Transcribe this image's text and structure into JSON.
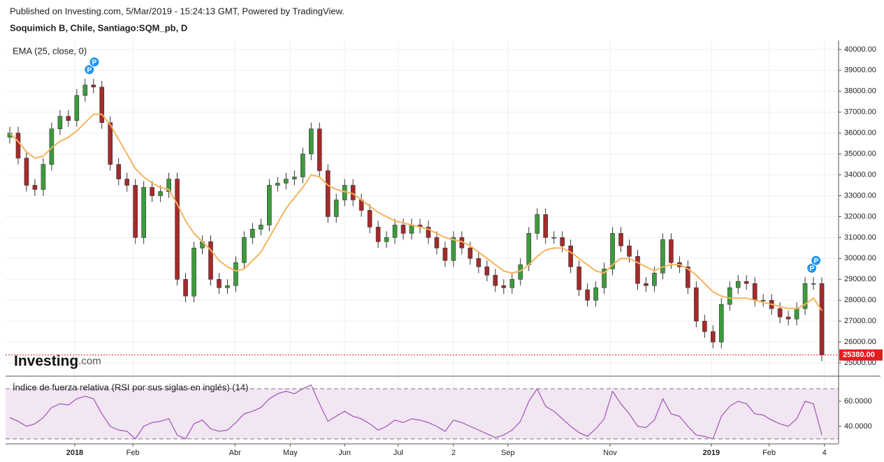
{
  "header": {
    "published": "Published on Investing.com, 5/Mar/2019 - 15:24:13 GMT, Powered by TradingView.",
    "instrument": "Soquimich B, Chile, Santiago:SQM_pb, D"
  },
  "logo": {
    "brand": "Investing",
    "suffix": ".com"
  },
  "chart_data": [
    {
      "type": "candlestick",
      "up_color": "#3d9b3d",
      "down_color": "#a52a2a",
      "open": [
        35800,
        36000,
        34800,
        33500,
        33300,
        34500,
        36200,
        36800,
        36600,
        37800,
        38300,
        38200,
        36500,
        34500,
        33800,
        33500,
        31000,
        33400,
        33000,
        33200,
        33800,
        29000,
        28200,
        30500,
        30800,
        29000,
        28600,
        28700,
        29800,
        31000,
        31400,
        31600,
        33500,
        33600,
        33800,
        33900,
        35000,
        36200,
        34200,
        32000,
        32800,
        33500,
        32800,
        32300,
        31500,
        30800,
        31000,
        31600,
        31200,
        31600,
        31500,
        31000,
        30500,
        29900,
        31000,
        30500,
        30000,
        29600,
        29200,
        28700,
        28600,
        29000,
        29700,
        31200,
        32100,
        31000,
        31000,
        30600,
        29600,
        28500,
        28000,
        28600,
        29500,
        31200,
        30600,
        30100,
        28800,
        28700,
        29300,
        30900,
        29800,
        29600,
        28600,
        27000,
        26500,
        26000,
        27800,
        28600,
        28900,
        28800,
        28000,
        28000,
        27600,
        27200,
        27100,
        27600,
        28800,
        28800
      ],
      "high": [
        36300,
        36300,
        35100,
        33800,
        34800,
        36500,
        37100,
        37100,
        38100,
        38600,
        38600,
        38500,
        36800,
        34800,
        34100,
        33800,
        33700,
        33700,
        33500,
        34100,
        34100,
        29300,
        30800,
        31100,
        31100,
        29300,
        29000,
        30100,
        31300,
        31700,
        31900,
        33800,
        33900,
        34100,
        34200,
        35300,
        36500,
        36500,
        34500,
        33100,
        33800,
        33800,
        33100,
        32600,
        31800,
        31300,
        31900,
        31900,
        31900,
        31900,
        31800,
        31300,
        30800,
        31300,
        31300,
        30800,
        30300,
        29900,
        29500,
        29000,
        29300,
        30000,
        31500,
        32400,
        32400,
        31300,
        31300,
        30900,
        29900,
        28800,
        28900,
        29800,
        31500,
        31500,
        30900,
        30400,
        29100,
        29600,
        31200,
        31200,
        30100,
        29900,
        28900,
        27300,
        26800,
        28100,
        28900,
        29200,
        29200,
        29100,
        28300,
        28300,
        27900,
        27500,
        27900,
        29100,
        29100,
        29100
      ],
      "low": [
        35500,
        34500,
        33200,
        33000,
        33000,
        34200,
        35900,
        36300,
        36300,
        37500,
        37900,
        36200,
        34200,
        33500,
        33200,
        30700,
        30700,
        32700,
        32700,
        32900,
        28700,
        27900,
        27900,
        30200,
        28700,
        28300,
        28300,
        28400,
        29500,
        30700,
        31100,
        31300,
        33200,
        33300,
        33500,
        33600,
        34700,
        33900,
        31700,
        31700,
        32500,
        32500,
        32000,
        31200,
        30500,
        30500,
        30700,
        30900,
        30900,
        31200,
        30700,
        30200,
        29600,
        29600,
        30200,
        29700,
        29300,
        28900,
        28400,
        28300,
        28300,
        28700,
        29400,
        30900,
        30700,
        30700,
        30300,
        29300,
        28200,
        27700,
        27700,
        28300,
        29200,
        30300,
        29800,
        28500,
        28400,
        28400,
        29000,
        29500,
        29300,
        28300,
        26700,
        26200,
        25700,
        25700,
        27500,
        28300,
        28500,
        27700,
        27700,
        27300,
        26900,
        26800,
        26800,
        27300,
        28500,
        25080
      ],
      "close": [
        36000,
        34800,
        33500,
        33300,
        34500,
        36200,
        36800,
        36600,
        37800,
        38300,
        38200,
        36500,
        34500,
        33800,
        33500,
        31000,
        33400,
        33000,
        33200,
        33800,
        29000,
        28200,
        30500,
        30800,
        29000,
        28600,
        28700,
        29800,
        31000,
        31400,
        31600,
        33500,
        33600,
        33800,
        33900,
        35000,
        36200,
        34200,
        32000,
        32800,
        33500,
        32800,
        32300,
        31500,
        30800,
        31000,
        31600,
        31200,
        31600,
        31500,
        31000,
        30500,
        29900,
        31000,
        30500,
        30000,
        29600,
        29200,
        28700,
        28600,
        29000,
        29700,
        31200,
        32100,
        31000,
        31000,
        30600,
        29600,
        28500,
        28000,
        28600,
        29500,
        31200,
        30600,
        30100,
        28800,
        28700,
        29300,
        30900,
        29800,
        29600,
        28600,
        27000,
        26500,
        26000,
        27800,
        28600,
        28900,
        28800,
        28000,
        28000,
        27600,
        27200,
        27100,
        27600,
        28800,
        28800,
        25380
      ],
      "series": [
        {
          "name": "EMA (25, close, 0)",
          "color": "#f4b45c",
          "values": [
            36000,
            35600,
            35100,
            34800,
            34900,
            35300,
            35600,
            35800,
            36100,
            36500,
            36900,
            36900,
            36400,
            35700,
            35000,
            34300,
            33900,
            33600,
            33400,
            33300,
            32600,
            31800,
            31200,
            30800,
            30400,
            29900,
            29600,
            29400,
            29500,
            29900,
            30300,
            31000,
            31700,
            32400,
            32900,
            33400,
            34000,
            33900,
            33500,
            33300,
            33200,
            33100,
            32800,
            32500,
            32200,
            32000,
            31800,
            31700,
            31600,
            31500,
            31400,
            31200,
            31000,
            30900,
            30800,
            30600,
            30300,
            30000,
            29700,
            29400,
            29300,
            29400,
            29700,
            30100,
            30400,
            30500,
            30500,
            30300,
            30000,
            29700,
            29400,
            29300,
            29700,
            30000,
            30000,
            29800,
            29600,
            29400,
            29600,
            29700,
            29700,
            29500,
            29200,
            28800,
            28400,
            28200,
            28100,
            28100,
            28100,
            28000,
            27900,
            27800,
            27700,
            27600,
            27600,
            27800,
            28100,
            27500
          ]
        }
      ],
      "xlim": [
        -0.5,
        99
      ],
      "xticks": [
        {
          "value": 7.76,
          "label": "2018"
        },
        {
          "value": 14.7,
          "label": "Feb"
        },
        {
          "value": 26.9,
          "label": "Abr"
        },
        {
          "value": 33.5,
          "label": "May"
        },
        {
          "value": 40.0,
          "label": "Jun"
        },
        {
          "value": 46.4,
          "label": "Jul"
        },
        {
          "value": 53.0,
          "label": "2"
        },
        {
          "value": 59.5,
          "label": "Sep"
        },
        {
          "value": 71.7,
          "label": "Nov"
        },
        {
          "value": 83.8,
          "label": "2019"
        },
        {
          "value": 90.7,
          "label": "Feb"
        },
        {
          "value": 97.3,
          "label": "4"
        }
      ],
      "ylim": [
        24400,
        40430
      ],
      "yticks": [
        {
          "value": 25000,
          "label": "25000.00"
        },
        {
          "value": 26000,
          "label": "26000.00"
        },
        {
          "value": 27000,
          "label": "27000.00"
        },
        {
          "value": 28000,
          "label": "28000.00"
        },
        {
          "value": 29000,
          "label": "29000.00"
        },
        {
          "value": 30000,
          "label": "30000.00"
        },
        {
          "value": 31000,
          "label": "31000.00"
        },
        {
          "value": 32000,
          "label": "32000.00"
        },
        {
          "value": 33000,
          "label": "33000.00"
        },
        {
          "value": 34000,
          "label": "34000.00"
        },
        {
          "value": 35000,
          "label": "35000.00"
        },
        {
          "value": 36000,
          "label": "36000.00"
        },
        {
          "value": 37000,
          "label": "37000.00"
        },
        {
          "value": 38000,
          "label": "38000.00"
        },
        {
          "value": 39000,
          "label": "39000.00"
        },
        {
          "value": 40000,
          "label": "40000.00"
        }
      ],
      "grid": true,
      "last_price": {
        "value": 25380,
        "label": "25380.00",
        "color": "#e41e1e"
      },
      "markers": [
        {
          "x": 9.5,
          "label": "P"
        },
        {
          "x": 10.1,
          "label": "P"
        },
        {
          "x": 95.8,
          "label": "P"
        },
        {
          "x": 96.3,
          "label": "P"
        }
      ],
      "marker_color": "#2196f3"
    },
    {
      "type": "line",
      "series": [
        {
          "name": "Índice de fuerza relativa (RSI por sus siglas en inglés) (14)",
          "color": "#9c55b6",
          "values": [
            47,
            44,
            40,
            42,
            47,
            55,
            58,
            57,
            62,
            64,
            62,
            50,
            40,
            37,
            36,
            30,
            40,
            43,
            44,
            46,
            33,
            30,
            42,
            45,
            38,
            36,
            37,
            43,
            50,
            52,
            55,
            62,
            66,
            68,
            66,
            70,
            73,
            58,
            44,
            48,
            52,
            48,
            46,
            42,
            37,
            40,
            45,
            43,
            46,
            45,
            43,
            40,
            36,
            45,
            43,
            40,
            37,
            34,
            31,
            33,
            37,
            44,
            60,
            70,
            56,
            52,
            46,
            40,
            35,
            32,
            38,
            46,
            68,
            58,
            50,
            40,
            39,
            45,
            62,
            50,
            48,
            40,
            33,
            32,
            30,
            48,
            56,
            60,
            58,
            50,
            49,
            45,
            42,
            40,
            46,
            60,
            58,
            33
          ]
        }
      ],
      "xlim": [
        -0.5,
        99
      ],
      "ylim": [
        26,
        79.5
      ],
      "yticks": [
        {
          "value": 40,
          "label": "40.0000"
        },
        {
          "value": 60,
          "label": "60.0000"
        }
      ],
      "bands": [
        30,
        70
      ],
      "band_color": "#f3e6f3",
      "grid": true
    }
  ]
}
